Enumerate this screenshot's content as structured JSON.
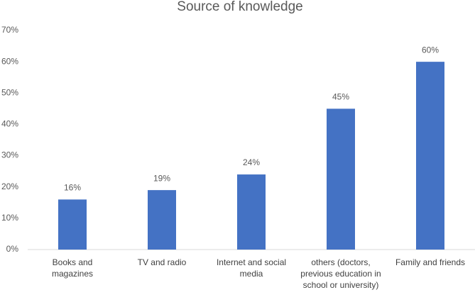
{
  "chart_data": {
    "type": "bar",
    "title": "Source of knowledge",
    "categories": [
      "Books and magazines",
      "TV and radio",
      "Internet and social media",
      "others (doctors, previous education in school or university)",
      "Family and friends"
    ],
    "values": [
      16,
      19,
      24,
      45,
      60
    ],
    "value_labels": [
      "16%",
      "19%",
      "24%",
      "45%",
      "60%"
    ],
    "color": "#4472c4",
    "ylim": [
      0,
      70
    ],
    "yticks": [
      {
        "value": 0,
        "label": "0%"
      },
      {
        "value": 10,
        "label": "10%"
      },
      {
        "value": 20,
        "label": "20%"
      },
      {
        "value": 30,
        "label": "30%"
      },
      {
        "value": 40,
        "label": "40%"
      },
      {
        "value": 50,
        "label": "50%"
      },
      {
        "value": 60,
        "label": "60%"
      },
      {
        "value": 70,
        "label": "70%"
      }
    ],
    "grid": false
  }
}
